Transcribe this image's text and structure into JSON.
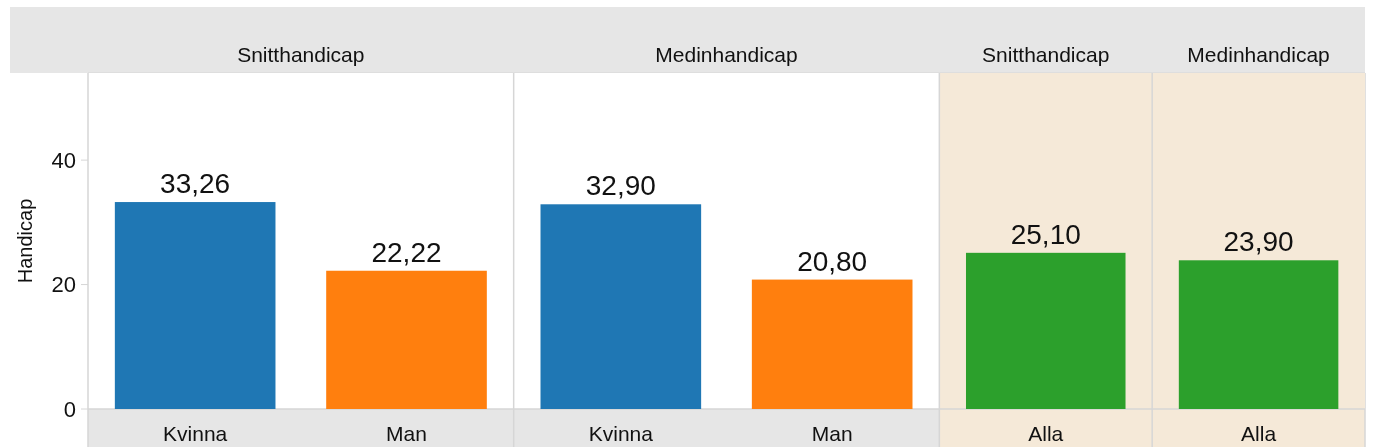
{
  "chart_data": [
    {
      "type": "bar",
      "title": "Snitthandicap",
      "ylabel": "Handicap",
      "categories": [
        "Kvinna",
        "Man"
      ],
      "values": [
        33.26,
        22.22
      ],
      "colors": [
        "#1f77b4",
        "#ff7f0e"
      ],
      "value_labels": [
        "33,26",
        "22,22"
      ],
      "ylim": [
        0,
        54
      ],
      "yticks": [
        0,
        20,
        40
      ]
    },
    {
      "type": "bar",
      "title": "Medinhandicap",
      "categories": [
        "Kvinna",
        "Man"
      ],
      "values": [
        32.9,
        20.8
      ],
      "colors": [
        "#1f77b4",
        "#ff7f0e"
      ],
      "value_labels": [
        "32,90",
        "20,80"
      ],
      "ylim": [
        0,
        54
      ],
      "tick_labels": "x"
    },
    {
      "type": "bar",
      "title": "Snitthandicap",
      "categories": [
        "Alla"
      ],
      "values": [
        25.1
      ],
      "colors": [
        "#2ca02c"
      ],
      "value_labels": [
        "25,10"
      ],
      "ylim": [
        0,
        54
      ],
      "tick_labels": "x"
    },
    {
      "type": "bar",
      "title": "Medinhandicap",
      "categories": [
        "Alla"
      ],
      "values": [
        23.9
      ],
      "colors": [
        "#2ca02c"
      ],
      "value_labels": [
        "23,90"
      ],
      "ylim": [
        0,
        54
      ],
      "tick_labels": "x"
    }
  ]
}
